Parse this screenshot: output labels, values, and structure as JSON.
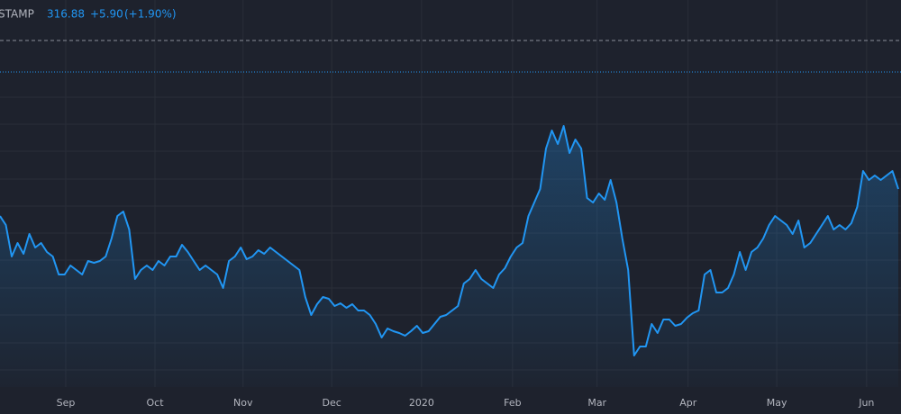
{
  "header": {
    "symbol": "STAMP",
    "last": 316.88,
    "change": {
      "value": 5.9,
      "label": "+5.90"
    },
    "change_pct": {
      "value": 1.9,
      "label": "(+1.90%)"
    }
  },
  "chart_data": {
    "type": "area",
    "color": "#2196f3",
    "grid": true,
    "values": [
      190,
      180,
      145,
      160,
      148,
      170,
      155,
      160,
      150,
      145,
      125,
      125,
      135,
      130,
      125,
      140,
      138,
      140,
      145,
      165,
      190,
      195,
      175,
      120,
      130,
      135,
      130,
      140,
      135,
      145,
      145,
      158,
      150,
      140,
      130,
      135,
      130,
      125,
      110,
      140,
      145,
      155,
      142,
      145,
      152,
      148,
      155,
      150,
      145,
      140,
      135,
      130,
      100,
      80,
      92,
      100,
      98,
      90,
      93,
      88,
      92,
      85,
      85,
      80,
      70,
      55,
      65,
      62,
      60,
      57,
      62,
      68,
      60,
      62,
      70,
      78,
      80,
      85,
      90,
      115,
      120,
      130,
      120,
      115,
      110,
      125,
      132,
      145,
      155,
      160,
      190,
      205,
      220,
      265,
      285,
      270,
      290,
      260,
      275,
      265,
      210,
      205,
      215,
      208,
      230,
      205,
      165,
      130,
      35,
      45,
      45,
      70,
      60,
      75,
      75,
      68,
      70,
      77,
      82,
      85,
      125,
      130,
      105,
      105,
      110,
      125,
      150,
      130,
      150,
      155,
      165,
      180,
      190,
      185,
      180,
      170,
      185,
      155,
      160,
      170,
      180,
      190,
      175,
      180,
      175,
      182,
      200,
      240,
      230,
      235,
      230,
      235,
      240,
      220
    ],
    "xlim": [
      0,
      153
    ],
    "xticks": [
      {
        "value": 11.2,
        "label": "Sep"
      },
      {
        "value": 26.4,
        "label": "Oct"
      },
      {
        "value": 41.4,
        "label": "Nov"
      },
      {
        "value": 56.5,
        "label": "Dec"
      },
      {
        "value": 71.8,
        "label": "2020"
      },
      {
        "value": 87.3,
        "label": "Feb"
      },
      {
        "value": 101.7,
        "label": "Mar"
      },
      {
        "value": 117.2,
        "label": "Apr"
      },
      {
        "value": 132.3,
        "label": "May"
      },
      {
        "value": 147.6,
        "label": "Jun"
      }
    ],
    "ylim": [
      0,
      430
    ],
    "yticks": [
      19,
      49,
      80,
      110,
      141,
      171,
      201,
      231,
      262,
      292,
      322
    ]
  }
}
